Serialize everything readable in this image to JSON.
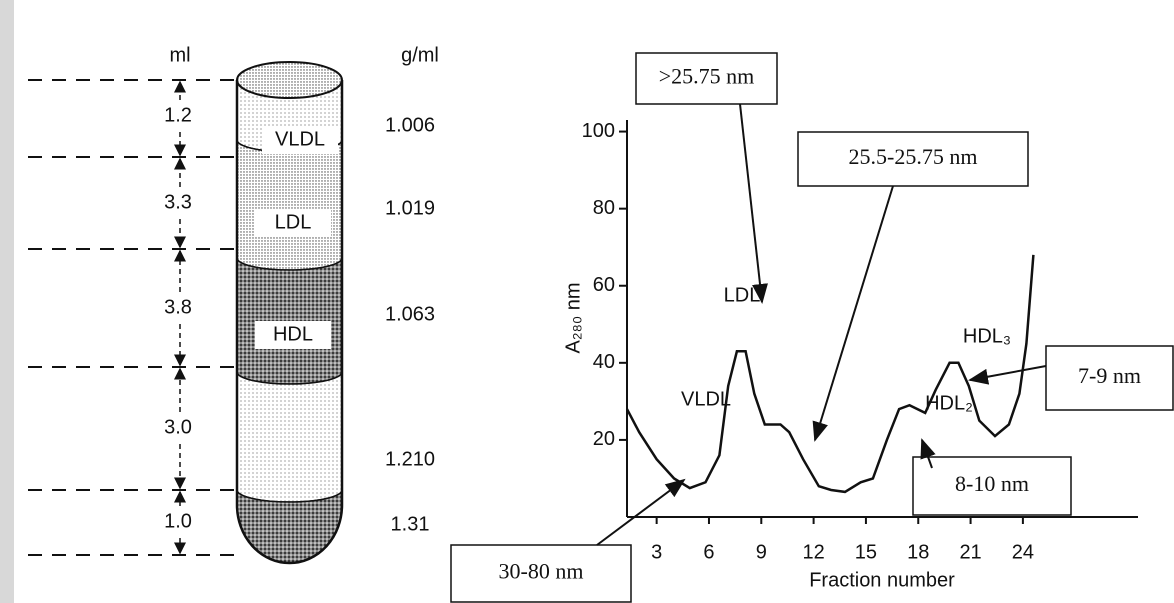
{
  "tube": {
    "volume_header": "ml",
    "density_header": "g/ml",
    "volumes": [
      "1.2",
      "3.3",
      "3.8",
      "3.0",
      "1.0"
    ],
    "densities": [
      "1.006",
      "1.019",
      "1.063",
      "1.210",
      "1.31"
    ],
    "bands": [
      "VLDL",
      "LDL",
      "HDL"
    ]
  },
  "chart_data": {
    "type": "line",
    "xlabel": "Fraction number",
    "ylabel": "A₂₈₀ nm",
    "xlim": [
      1.3,
      30.6
    ],
    "ylim": [
      0,
      103
    ],
    "xticks": [
      3,
      6,
      9,
      12,
      15,
      18,
      21,
      24
    ],
    "yticks": [
      20,
      40,
      60,
      80,
      100
    ],
    "series": [
      {
        "color": "#111111",
        "x": [
          1.3,
          2,
          3,
          4,
          4.9,
          5.8,
          6.6,
          7.1,
          7.6,
          8.1,
          8.6,
          9.2,
          10.1,
          10.6,
          11.4,
          12.3,
          13,
          13.8,
          14.7,
          15.4,
          16.2,
          16.9,
          17.5,
          18.4,
          19,
          19.8,
          20.3,
          20.9,
          21.5,
          22.4,
          23.2,
          23.8,
          24.2,
          24.6
        ],
        "values": [
          28,
          22,
          15,
          10,
          7.5,
          9,
          16,
          34,
          43,
          43,
          32,
          24,
          24,
          22,
          15,
          8,
          7,
          6.5,
          9,
          10,
          20,
          28,
          29,
          27,
          33,
          40,
          40,
          34,
          25,
          21,
          24,
          32,
          45,
          68
        ]
      }
    ],
    "peak_labels": [
      "VLDL",
      "LDL",
      "HDL₂",
      "HDL₃"
    ],
    "annotations": [
      ">25.75 nm",
      "25.5-25.75 nm",
      "30-80 nm",
      "8-10 nm",
      "7-9 nm"
    ]
  }
}
